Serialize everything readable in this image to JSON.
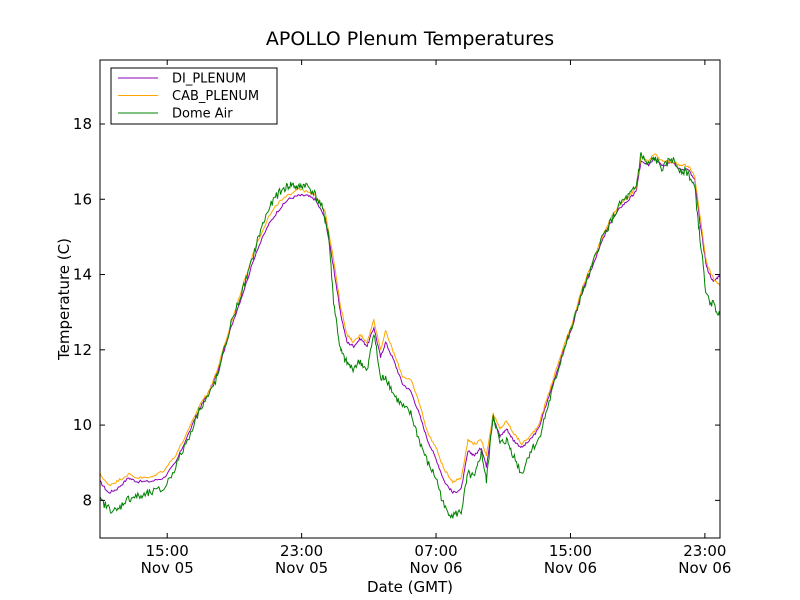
{
  "chart_data": {
    "type": "line",
    "title": "APOLLO Plenum Temperatures",
    "xlabel": "Date (GMT)",
    "ylabel": "Temperature (C)",
    "xlim": [
      11.0,
      47.9
    ],
    "ylim": [
      7.0,
      19.7
    ],
    "grid": false,
    "legend_position": "top-left",
    "x_ticks": [
      {
        "value": 15,
        "time": "15:00",
        "date": "Nov 05"
      },
      {
        "value": 23,
        "time": "23:00",
        "date": "Nov 05"
      },
      {
        "value": 31,
        "time": "07:00",
        "date": "Nov 06"
      },
      {
        "value": 39,
        "time": "15:00",
        "date": "Nov 06"
      },
      {
        "value": 47,
        "time": "23:00",
        "date": "Nov 06"
      }
    ],
    "y_ticks": [
      {
        "value": 8,
        "label": "8"
      },
      {
        "value": 10,
        "label": "10"
      },
      {
        "value": 12,
        "label": "12"
      },
      {
        "value": 14,
        "label": "14"
      },
      {
        "value": 16,
        "label": "16"
      },
      {
        "value": 18,
        "label": "18"
      }
    ],
    "x_unit": "hours since 00:00 GMT Nov 05",
    "series": [
      {
        "name": "DI_PLENUM",
        "color": "#8b00b8",
        "points": [
          [
            11.0,
            8.5
          ],
          [
            11.5,
            8.2
          ],
          [
            12.0,
            8.3
          ],
          [
            12.7,
            8.6
          ],
          [
            13.2,
            8.5
          ],
          [
            14.0,
            8.5
          ],
          [
            14.8,
            8.6
          ],
          [
            15.5,
            9.0
          ],
          [
            16.2,
            9.7
          ],
          [
            17.0,
            10.5
          ],
          [
            17.5,
            10.9
          ],
          [
            18.0,
            11.4
          ],
          [
            18.8,
            12.6
          ],
          [
            19.5,
            13.5
          ],
          [
            20.3,
            14.6
          ],
          [
            21.0,
            15.3
          ],
          [
            21.6,
            15.7
          ],
          [
            22.2,
            16.0
          ],
          [
            22.8,
            16.1
          ],
          [
            23.3,
            16.1
          ],
          [
            23.8,
            16.0
          ],
          [
            24.4,
            15.5
          ],
          [
            24.9,
            14.2
          ],
          [
            25.3,
            13.0
          ],
          [
            25.7,
            12.2
          ],
          [
            26.1,
            12.1
          ],
          [
            26.5,
            12.3
          ],
          [
            26.9,
            12.1
          ],
          [
            27.3,
            12.6
          ],
          [
            27.7,
            11.8
          ],
          [
            28.0,
            12.2
          ],
          [
            28.5,
            11.7
          ],
          [
            29.0,
            11.1
          ],
          [
            29.5,
            10.9
          ],
          [
            30.0,
            10.3
          ],
          [
            30.5,
            9.6
          ],
          [
            31.0,
            9.1
          ],
          [
            31.5,
            8.5
          ],
          [
            32.0,
            8.2
          ],
          [
            32.5,
            8.3
          ],
          [
            32.9,
            9.3
          ],
          [
            33.3,
            9.2
          ],
          [
            33.7,
            9.4
          ],
          [
            34.0,
            8.9
          ],
          [
            34.4,
            10.2
          ],
          [
            34.8,
            9.7
          ],
          [
            35.2,
            9.9
          ],
          [
            35.6,
            9.6
          ],
          [
            36.1,
            9.4
          ],
          [
            36.6,
            9.6
          ],
          [
            37.1,
            9.9
          ],
          [
            37.6,
            10.6
          ],
          [
            38.1,
            11.3
          ],
          [
            38.6,
            12.0
          ],
          [
            39.1,
            12.6
          ],
          [
            39.6,
            13.4
          ],
          [
            40.2,
            14.1
          ],
          [
            40.8,
            14.8
          ],
          [
            41.4,
            15.4
          ],
          [
            42.0,
            15.8
          ],
          [
            42.5,
            16.0
          ],
          [
            42.9,
            16.2
          ],
          [
            43.2,
            17.0
          ],
          [
            43.6,
            16.9
          ],
          [
            44.0,
            17.1
          ],
          [
            44.5,
            16.9
          ],
          [
            45.0,
            17.0
          ],
          [
            45.5,
            16.8
          ],
          [
            46.0,
            16.8
          ],
          [
            46.4,
            16.5
          ],
          [
            46.7,
            15.4
          ],
          [
            47.1,
            14.2
          ],
          [
            47.5,
            13.8
          ],
          [
            47.9,
            14.0
          ]
        ]
      },
      {
        "name": "CAB_PLENUM",
        "color": "#ffa500",
        "points": [
          [
            11.0,
            8.7
          ],
          [
            11.5,
            8.4
          ],
          [
            12.0,
            8.5
          ],
          [
            12.7,
            8.7
          ],
          [
            13.2,
            8.6
          ],
          [
            14.0,
            8.6
          ],
          [
            14.8,
            8.8
          ],
          [
            15.5,
            9.2
          ],
          [
            16.2,
            9.8
          ],
          [
            17.0,
            10.6
          ],
          [
            17.5,
            10.9
          ],
          [
            18.0,
            11.5
          ],
          [
            18.8,
            12.7
          ],
          [
            19.5,
            13.7
          ],
          [
            20.3,
            14.8
          ],
          [
            21.0,
            15.5
          ],
          [
            21.6,
            15.9
          ],
          [
            22.2,
            16.1
          ],
          [
            22.8,
            16.3
          ],
          [
            23.3,
            16.2
          ],
          [
            23.8,
            16.1
          ],
          [
            24.4,
            15.7
          ],
          [
            24.9,
            14.4
          ],
          [
            25.3,
            13.2
          ],
          [
            25.7,
            12.4
          ],
          [
            26.1,
            12.2
          ],
          [
            26.5,
            12.4
          ],
          [
            26.9,
            12.2
          ],
          [
            27.3,
            12.8
          ],
          [
            27.7,
            12.0
          ],
          [
            28.0,
            12.5
          ],
          [
            28.5,
            11.9
          ],
          [
            29.0,
            11.3
          ],
          [
            29.5,
            11.2
          ],
          [
            30.0,
            10.6
          ],
          [
            30.5,
            9.8
          ],
          [
            31.0,
            9.4
          ],
          [
            31.5,
            8.8
          ],
          [
            32.0,
            8.5
          ],
          [
            32.5,
            8.6
          ],
          [
            32.9,
            9.6
          ],
          [
            33.3,
            9.5
          ],
          [
            33.7,
            9.6
          ],
          [
            34.0,
            9.2
          ],
          [
            34.4,
            10.3
          ],
          [
            34.8,
            9.9
          ],
          [
            35.2,
            10.1
          ],
          [
            35.6,
            9.8
          ],
          [
            36.1,
            9.5
          ],
          [
            36.6,
            9.7
          ],
          [
            37.1,
            10.0
          ],
          [
            37.6,
            10.7
          ],
          [
            38.1,
            11.4
          ],
          [
            38.6,
            12.1
          ],
          [
            39.1,
            12.7
          ],
          [
            39.6,
            13.5
          ],
          [
            40.2,
            14.2
          ],
          [
            40.8,
            14.9
          ],
          [
            41.4,
            15.5
          ],
          [
            42.0,
            15.9
          ],
          [
            42.5,
            16.1
          ],
          [
            42.9,
            16.3
          ],
          [
            43.2,
            17.1
          ],
          [
            43.6,
            17.0
          ],
          [
            44.0,
            17.2
          ],
          [
            44.5,
            17.0
          ],
          [
            45.0,
            17.0
          ],
          [
            45.5,
            16.9
          ],
          [
            46.0,
            16.9
          ],
          [
            46.4,
            16.6
          ],
          [
            46.7,
            15.6
          ],
          [
            47.1,
            14.3
          ],
          [
            47.5,
            13.9
          ],
          [
            47.9,
            13.7
          ]
        ]
      },
      {
        "name": "Dome Air",
        "color": "#008000",
        "points": [
          [
            11.0,
            8.0
          ],
          [
            11.5,
            7.8
          ],
          [
            12.0,
            7.7
          ],
          [
            12.5,
            8.0
          ],
          [
            13.0,
            8.1
          ],
          [
            13.5,
            8.1
          ],
          [
            14.0,
            8.2
          ],
          [
            14.8,
            8.3
          ],
          [
            15.5,
            8.9
          ],
          [
            16.2,
            9.6
          ],
          [
            17.0,
            10.5
          ],
          [
            17.5,
            10.8
          ],
          [
            18.0,
            11.3
          ],
          [
            18.8,
            12.7
          ],
          [
            19.5,
            13.6
          ],
          [
            20.0,
            14.3
          ],
          [
            20.5,
            15.1
          ],
          [
            21.0,
            15.7
          ],
          [
            21.5,
            16.1
          ],
          [
            22.0,
            16.3
          ],
          [
            22.4,
            16.4
          ],
          [
            22.8,
            16.3
          ],
          [
            23.2,
            16.4
          ],
          [
            23.7,
            16.2
          ],
          [
            24.2,
            15.8
          ],
          [
            24.6,
            15.1
          ],
          [
            24.9,
            13.3
          ],
          [
            25.3,
            12.0
          ],
          [
            25.6,
            11.7
          ],
          [
            26.0,
            11.5
          ],
          [
            26.5,
            11.7
          ],
          [
            26.9,
            11.4
          ],
          [
            27.3,
            12.5
          ],
          [
            27.7,
            11.2
          ],
          [
            28.0,
            11.3
          ],
          [
            28.5,
            10.8
          ],
          [
            29.0,
            10.5
          ],
          [
            29.5,
            10.3
          ],
          [
            30.0,
            9.6
          ],
          [
            30.5,
            9.0
          ],
          [
            31.0,
            8.6
          ],
          [
            31.5,
            7.8
          ],
          [
            32.0,
            7.6
          ],
          [
            32.5,
            7.7
          ],
          [
            32.9,
            8.7
          ],
          [
            33.3,
            8.6
          ],
          [
            33.7,
            9.3
          ],
          [
            34.0,
            8.5
          ],
          [
            34.4,
            10.3
          ],
          [
            34.8,
            9.5
          ],
          [
            35.2,
            9.6
          ],
          [
            35.6,
            9.2
          ],
          [
            36.1,
            8.7
          ],
          [
            36.6,
            9.3
          ],
          [
            37.1,
            9.6
          ],
          [
            37.6,
            10.4
          ],
          [
            38.1,
            11.2
          ],
          [
            38.6,
            12.0
          ],
          [
            39.1,
            12.6
          ],
          [
            39.6,
            13.4
          ],
          [
            40.2,
            14.1
          ],
          [
            40.8,
            14.9
          ],
          [
            41.4,
            15.4
          ],
          [
            42.0,
            15.9
          ],
          [
            42.5,
            16.1
          ],
          [
            42.9,
            16.3
          ],
          [
            43.2,
            17.2
          ],
          [
            43.6,
            16.9
          ],
          [
            44.0,
            17.1
          ],
          [
            44.5,
            16.8
          ],
          [
            45.0,
            17.1
          ],
          [
            45.5,
            16.8
          ],
          [
            46.0,
            16.7
          ],
          [
            46.4,
            16.3
          ],
          [
            46.7,
            15.0
          ],
          [
            47.1,
            13.4
          ],
          [
            47.5,
            13.2
          ],
          [
            47.9,
            12.9
          ]
        ]
      }
    ]
  }
}
